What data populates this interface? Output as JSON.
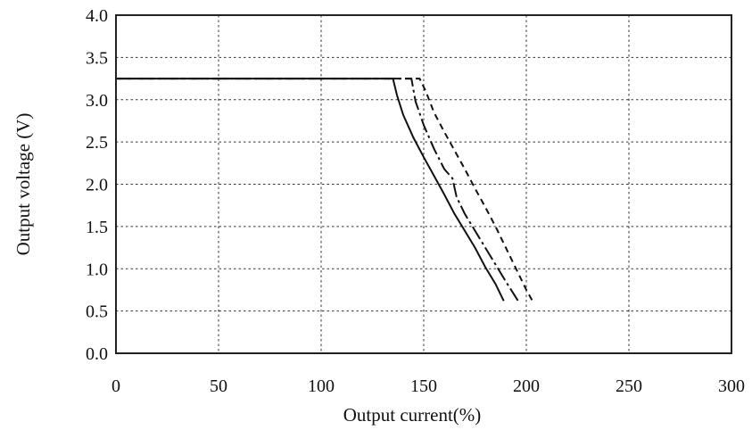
{
  "chart_data": {
    "type": "line",
    "title": "",
    "xlabel": "Output current(%)",
    "ylabel": "Output voltage (V)",
    "xlim": [
      0,
      300
    ],
    "ylim": [
      0,
      4.0
    ],
    "x_ticks": [
      0,
      50,
      100,
      150,
      200,
      250,
      300
    ],
    "y_ticks": [
      0.0,
      0.5,
      1.0,
      1.5,
      2.0,
      2.5,
      3.0,
      3.5,
      4.0
    ],
    "x_tick_labels": [
      "0",
      "50",
      "100",
      "150",
      "200",
      "250",
      "300"
    ],
    "y_tick_labels": [
      "0.0",
      "0.5",
      "1.0",
      "1.5",
      "2.0",
      "2.5",
      "3.0",
      "3.5",
      "4.0"
    ],
    "grid": true,
    "legend": "none",
    "series": [
      {
        "line_style": "solid",
        "x": [
          0,
          135,
          137,
          140,
          145,
          150,
          155,
          160,
          165,
          170,
          175,
          180,
          185,
          189
        ],
        "y": [
          3.25,
          3.25,
          3.05,
          2.82,
          2.55,
          2.32,
          2.1,
          1.88,
          1.65,
          1.45,
          1.25,
          1.02,
          0.82,
          0.62
        ]
      },
      {
        "line_style": "dash-dot",
        "x": [
          0,
          144,
          146,
          150,
          155,
          160,
          164,
          166,
          170,
          175,
          180,
          185,
          190,
          196
        ],
        "y": [
          3.25,
          3.25,
          2.98,
          2.7,
          2.42,
          2.18,
          2.07,
          1.85,
          1.65,
          1.45,
          1.25,
          1.05,
          0.85,
          0.62
        ]
      },
      {
        "line_style": "dashed",
        "x": [
          0,
          148,
          151,
          155,
          160,
          165,
          170,
          175,
          180,
          185,
          190,
          195,
          200,
          203
        ],
        "y": [
          3.25,
          3.25,
          3.1,
          2.85,
          2.62,
          2.4,
          2.18,
          1.95,
          1.73,
          1.5,
          1.25,
          1.0,
          0.75,
          0.62
        ]
      }
    ]
  }
}
